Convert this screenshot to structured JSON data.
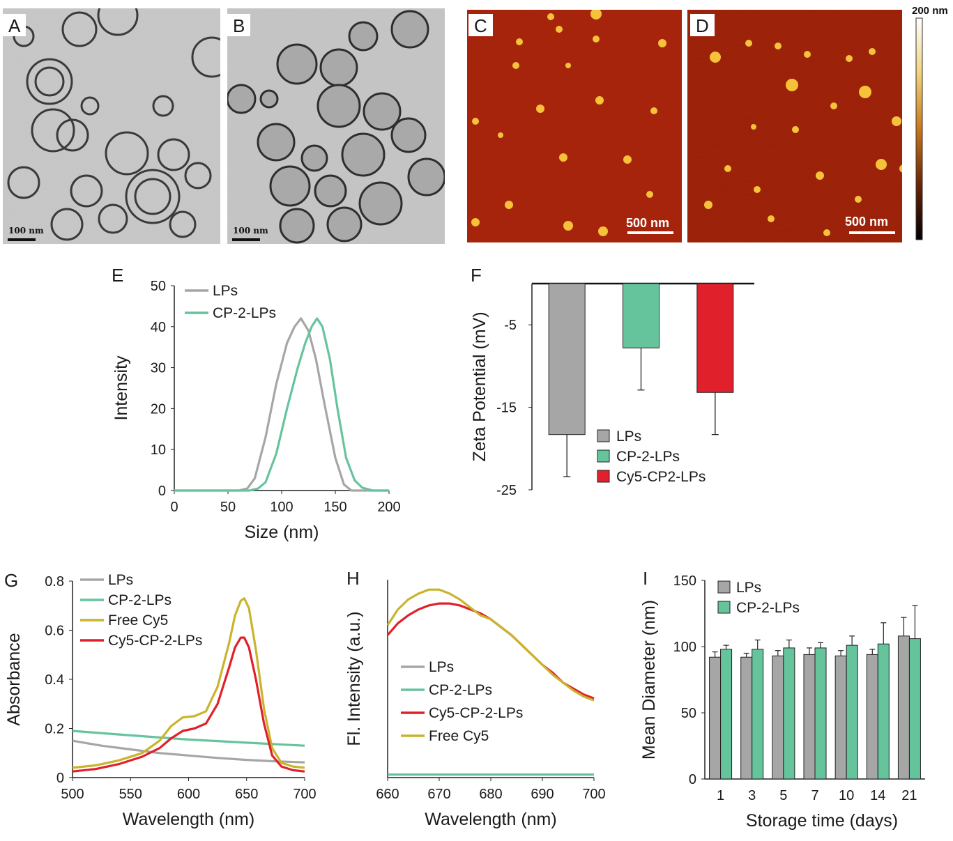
{
  "panels": {
    "A": {
      "label": "A",
      "scalebar": "100 nm"
    },
    "B": {
      "label": "B",
      "scalebar": "100 nm"
    },
    "C": {
      "label": "C",
      "scalebar": "500 nm"
    },
    "D": {
      "label": "D",
      "scalebar": "500 nm"
    },
    "colorbar": {
      "max_label": "200 nm"
    },
    "E": {
      "label": "E"
    },
    "F": {
      "label": "F"
    },
    "G": {
      "label": "G"
    },
    "H": {
      "label": "H"
    },
    "I": {
      "label": "I"
    }
  },
  "colors": {
    "gray": "#a6a6a6",
    "green": "#66c49d",
    "red": "#e0202a",
    "gold": "#c9b42c"
  },
  "chart_data": [
    {
      "id": "E",
      "type": "line",
      "xlabel": "Size (nm)",
      "ylabel": "Intensity",
      "xlim": [
        0,
        200
      ],
      "ylim": [
        0,
        50
      ],
      "xticks": [
        0,
        50,
        100,
        150,
        200
      ],
      "yticks": [
        0,
        10,
        20,
        30,
        40,
        50
      ],
      "series": [
        {
          "name": "LPs",
          "color": "#a6a6a6",
          "x": [
            0,
            60,
            68,
            75,
            85,
            95,
            105,
            112,
            118,
            125,
            132,
            140,
            150,
            158,
            165,
            200
          ],
          "y": [
            0,
            0,
            0.5,
            3,
            13,
            26,
            36,
            40,
            42,
            39,
            32,
            21,
            8,
            1.5,
            0,
            0
          ]
        },
        {
          "name": "CP-2-LPs",
          "color": "#66c49d",
          "x": [
            0,
            70,
            78,
            85,
            95,
            105,
            115,
            122,
            128,
            133,
            138,
            145,
            152,
            160,
            168,
            175,
            185,
            200
          ],
          "y": [
            0,
            0,
            0.5,
            2,
            9,
            20,
            30,
            36,
            40,
            42,
            40,
            32,
            20,
            8,
            2.5,
            0.7,
            0,
            0
          ]
        }
      ]
    },
    {
      "id": "F",
      "type": "bar",
      "ylabel": "Zeta Potential (mV)",
      "ylim": [
        -25,
        0
      ],
      "yticks": [
        -5,
        -15,
        -25
      ],
      "categories": [
        "LPs",
        "CP-2-LPs",
        "Cy5-CP2-LPs"
      ],
      "values": [
        -18.3,
        -7.8,
        -13.2
      ],
      "errors": [
        5.1,
        5.1,
        5.1
      ],
      "bar_colors": [
        "#a6a6a6",
        "#66c49d",
        "#e0202a"
      ],
      "legend": [
        "LPs",
        "CP-2-LPs",
        "Cy5-CP2-LPs"
      ]
    },
    {
      "id": "G",
      "type": "line",
      "xlabel": "Wavelength (nm)",
      "ylabel": "Absorbance",
      "xlim": [
        500,
        700
      ],
      "ylim": [
        0,
        0.8
      ],
      "xticks": [
        500,
        550,
        600,
        650,
        700
      ],
      "yticks": [
        0,
        0.2,
        0.4,
        0.6,
        0.8
      ],
      "series": [
        {
          "name": "LPs",
          "color": "#a6a6a6",
          "x": [
            500,
            525,
            550,
            575,
            600,
            625,
            650,
            675,
            700
          ],
          "y": [
            0.15,
            0.13,
            0.115,
            0.1,
            0.09,
            0.08,
            0.072,
            0.066,
            0.062
          ]
        },
        {
          "name": "CP-2-LPs",
          "color": "#66c49d",
          "x": [
            500,
            550,
            600,
            650,
            700
          ],
          "y": [
            0.19,
            0.172,
            0.155,
            0.142,
            0.13
          ]
        },
        {
          "name": "Free Cy5",
          "color": "#c9b42c",
          "x": [
            500,
            520,
            540,
            560,
            575,
            585,
            595,
            605,
            615,
            625,
            635,
            640,
            645,
            648,
            652,
            658,
            665,
            672,
            680,
            690,
            700
          ],
          "y": [
            0.04,
            0.05,
            0.07,
            0.1,
            0.15,
            0.21,
            0.245,
            0.25,
            0.27,
            0.37,
            0.55,
            0.66,
            0.72,
            0.73,
            0.69,
            0.52,
            0.28,
            0.12,
            0.06,
            0.045,
            0.04
          ]
        },
        {
          "name": "Cy5-CP-2-LPs",
          "color": "#e0202a",
          "x": [
            500,
            520,
            540,
            560,
            575,
            585,
            595,
            605,
            615,
            625,
            635,
            640,
            645,
            648,
            652,
            658,
            665,
            672,
            680,
            690,
            700
          ],
          "y": [
            0.025,
            0.035,
            0.055,
            0.085,
            0.12,
            0.16,
            0.19,
            0.2,
            0.22,
            0.3,
            0.45,
            0.53,
            0.57,
            0.57,
            0.53,
            0.4,
            0.22,
            0.09,
            0.045,
            0.03,
            0.025
          ]
        }
      ]
    },
    {
      "id": "H",
      "type": "line",
      "xlabel": "Wavelength (nm)",
      "ylabel": "Fl. Intensity (a.u.)",
      "xlim": [
        660,
        700
      ],
      "ylim": [
        0,
        100
      ],
      "xticks": [
        660,
        670,
        680,
        690,
        700
      ],
      "series": [
        {
          "name": "LPs",
          "color": "#a6a6a6",
          "x": [
            660,
            700
          ],
          "y": [
            1.5,
            1.5
          ]
        },
        {
          "name": "CP-2-LPs",
          "color": "#66c49d",
          "x": [
            660,
            700
          ],
          "y": [
            1.5,
            1.5
          ]
        },
        {
          "name": "Cy5-CP-2-LPs",
          "color": "#e0202a",
          "x": [
            660,
            662,
            664,
            666,
            668,
            670,
            672,
            674,
            676,
            678,
            680,
            682,
            684,
            686,
            688,
            690,
            692,
            694,
            696,
            698,
            700
          ],
          "y": [
            72,
            78,
            82,
            85,
            87,
            88,
            88,
            87,
            85,
            83,
            80,
            76,
            72,
            67,
            62,
            57,
            53,
            48,
            45,
            42,
            40
          ]
        },
        {
          "name": "Free Cy5",
          "color": "#c9b42c",
          "x": [
            660,
            662,
            664,
            666,
            668,
            670,
            672,
            674,
            676,
            678,
            680,
            682,
            684,
            686,
            688,
            690,
            692,
            694,
            696,
            698,
            700
          ],
          "y": [
            77,
            85,
            90,
            93,
            95,
            95,
            93,
            90,
            86,
            82,
            80,
            76,
            72,
            67,
            62,
            57,
            52,
            48,
            44,
            41,
            39
          ]
        }
      ]
    },
    {
      "id": "I",
      "type": "bar",
      "xlabel": "Storage time (days)",
      "ylabel": "Mean Diameter (nm)",
      "ylim": [
        0,
        150
      ],
      "yticks": [
        0,
        50,
        100,
        150
      ],
      "categories": [
        "1",
        "3",
        "5",
        "7",
        "10",
        "14",
        "21"
      ],
      "series": [
        {
          "name": "LPs",
          "color": "#a6a6a6",
          "values": [
            92,
            92,
            93,
            94,
            93,
            94,
            108
          ],
          "errors": [
            4,
            3,
            4,
            5,
            4,
            4,
            14
          ]
        },
        {
          "name": "CP-2-LPs",
          "color": "#66c49d",
          "values": [
            98,
            98,
            99,
            99,
            101,
            102,
            106
          ],
          "errors": [
            3,
            7,
            6,
            4,
            7,
            16,
            25
          ]
        }
      ]
    }
  ]
}
